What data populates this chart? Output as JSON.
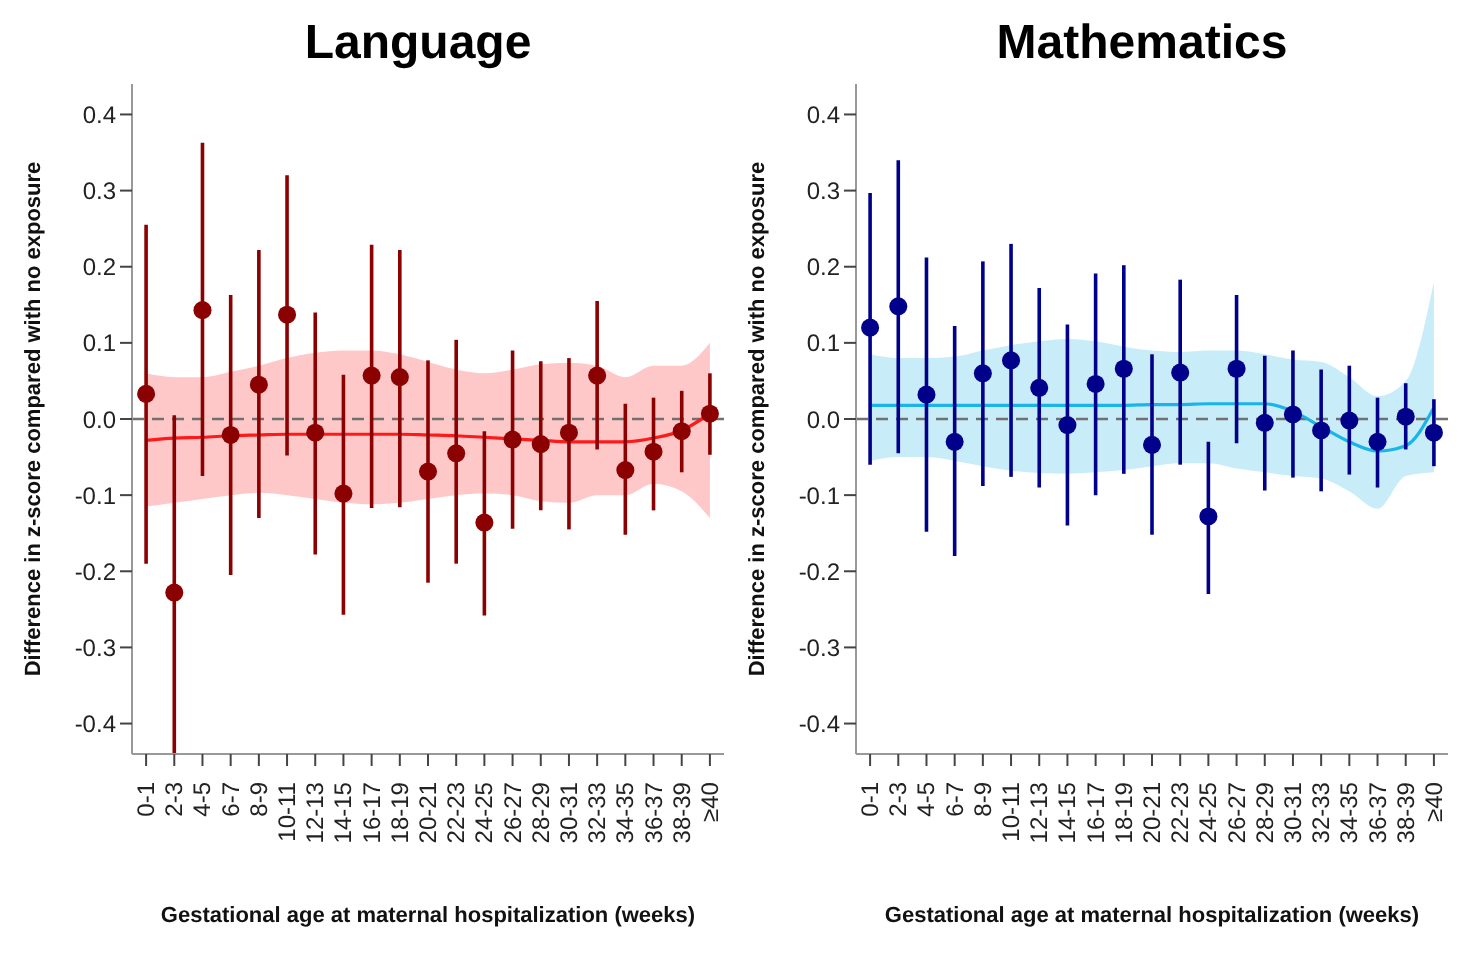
{
  "chart_data": [
    {
      "type": "scatter",
      "title": "Language",
      "xlabel": "Gestational age at maternal hospitalization (weeks)",
      "ylabel": "Difference in z-score compared with no exposure",
      "categories": [
        "0-1",
        "2-3",
        "4-5",
        "6-7",
        "8-9",
        "10-11",
        "12-13",
        "14-15",
        "16-17",
        "18-19",
        "20-21",
        "22-23",
        "24-25",
        "26-27",
        "28-29",
        "30-31",
        "32-33",
        "34-35",
        "36-37",
        "38-39",
        "≥40"
      ],
      "ylim": [
        -0.44,
        0.44
      ],
      "yticks": [
        -0.4,
        -0.3,
        -0.2,
        -0.1,
        {
          "value": 0,
          "label": "0.0"
        },
        0.1,
        0.2,
        0.3,
        0.4
      ],
      "ref_lines": [
        {
          "axis": "y",
          "value": 0,
          "color": "#707070",
          "line_style": "dashed"
        }
      ],
      "series": [
        {
          "type": "line",
          "color": "#ff1a1a",
          "line_style": "solid",
          "marker": "none",
          "values": [
            -0.028,
            -0.025,
            -0.024,
            -0.022,
            -0.021,
            -0.02,
            -0.02,
            -0.02,
            -0.02,
            -0.02,
            -0.021,
            -0.022,
            -0.024,
            -0.026,
            -0.028,
            -0.03,
            -0.03,
            -0.03,
            -0.025,
            -0.015,
            0.007
          ],
          "lower": [
            -0.115,
            -0.11,
            -0.105,
            -0.1,
            -0.097,
            -0.1,
            -0.105,
            -0.11,
            -0.112,
            -0.11,
            -0.105,
            -0.1,
            -0.098,
            -0.1,
            -0.108,
            -0.11,
            -0.1,
            -0.1,
            -0.085,
            -0.095,
            -0.13
          ],
          "upper": [
            0.06,
            0.055,
            0.055,
            0.062,
            0.07,
            0.08,
            0.087,
            0.09,
            0.09,
            0.085,
            0.075,
            0.065,
            0.06,
            0.065,
            0.072,
            0.074,
            0.07,
            0.055,
            0.07,
            0.07,
            0.1
          ]
        },
        {
          "color": "#8b0000",
          "marker": "circle",
          "values": [
            0.033,
            -0.228,
            0.143,
            -0.021,
            0.045,
            0.137,
            -0.018,
            -0.098,
            0.057,
            0.055,
            -0.069,
            -0.045,
            -0.136,
            -0.027,
            -0.033,
            -0.018,
            0.057,
            -0.067,
            -0.043,
            -0.016,
            0.007
          ],
          "errors": [
            [
              -0.19,
              0.255
            ],
            [
              -0.44,
              0.005
            ],
            [
              -0.075,
              0.363
            ],
            [
              -0.205,
              0.163
            ],
            [
              -0.13,
              0.222
            ],
            [
              -0.048,
              0.32
            ],
            [
              -0.178,
              0.14
            ],
            [
              -0.257,
              0.058
            ],
            [
              -0.117,
              0.229
            ],
            [
              -0.116,
              0.222
            ],
            [
              -0.215,
              0.077
            ],
            [
              -0.19,
              0.104
            ],
            [
              -0.258,
              -0.016
            ],
            [
              -0.144,
              0.09
            ],
            [
              -0.12,
              0.076
            ],
            [
              -0.145,
              0.08
            ],
            [
              -0.04,
              0.155
            ],
            [
              -0.152,
              0.02
            ],
            [
              -0.12,
              0.028
            ],
            [
              -0.07,
              0.037
            ],
            [
              -0.047,
              0.06
            ]
          ]
        }
      ]
    },
    {
      "type": "scatter",
      "title": "Mathematics",
      "xlabel": "Gestational age at maternal hospitalization (weeks)",
      "ylabel": "Difference in z-score compared with no exposure",
      "categories": [
        "0-1",
        "2-3",
        "4-5",
        "6-7",
        "8-9",
        "10-11",
        "12-13",
        "14-15",
        "16-17",
        "18-19",
        "20-21",
        "22-23",
        "24-25",
        "26-27",
        "28-29",
        "30-31",
        "32-33",
        "34-35",
        "36-37",
        "38-39",
        "≥40"
      ],
      "ylim": [
        -0.44,
        0.44
      ],
      "yticks": [
        -0.4,
        -0.3,
        -0.2,
        -0.1,
        {
          "value": 0,
          "label": "0.0"
        },
        0.1,
        0.2,
        0.3,
        0.4
      ],
      "ref_lines": [
        {
          "axis": "y",
          "value": 0,
          "color": "#707070",
          "line_style": "dashed"
        }
      ],
      "series": [
        {
          "type": "line",
          "color": "#1ab4e8",
          "line_style": "solid",
          "marker": "none",
          "values": [
            0.018,
            0.018,
            0.018,
            0.018,
            0.018,
            0.018,
            0.018,
            0.018,
            0.018,
            0.018,
            0.019,
            0.019,
            0.02,
            0.02,
            0.02,
            0.01,
            -0.01,
            -0.03,
            -0.042,
            -0.035,
            0.015
          ],
          "lower": [
            -0.055,
            -0.05,
            -0.05,
            -0.055,
            -0.062,
            -0.068,
            -0.071,
            -0.072,
            -0.07,
            -0.067,
            -0.062,
            -0.058,
            -0.058,
            -0.065,
            -0.07,
            -0.075,
            -0.078,
            -0.095,
            -0.118,
            -0.075,
            -0.07
          ],
          "upper": [
            0.085,
            0.08,
            0.08,
            0.082,
            0.09,
            0.097,
            0.102,
            0.105,
            0.102,
            0.095,
            0.09,
            0.088,
            0.09,
            0.09,
            0.085,
            0.078,
            0.075,
            0.055,
            0.03,
            0.05,
            0.18
          ]
        },
        {
          "color": "#00008b",
          "marker": "circle",
          "values": [
            0.12,
            0.148,
            0.032,
            -0.03,
            0.06,
            0.077,
            0.041,
            -0.008,
            0.046,
            0.066,
            -0.034,
            0.061,
            -0.128,
            0.066,
            -0.005,
            0.006,
            -0.015,
            -0.002,
            -0.03,
            0.003,
            -0.018
          ],
          "errors": [
            [
              -0.06,
              0.297
            ],
            [
              -0.045,
              0.34
            ],
            [
              -0.148,
              0.212
            ],
            [
              -0.18,
              0.122
            ],
            [
              -0.088,
              0.207
            ],
            [
              -0.076,
              0.23
            ],
            [
              -0.09,
              0.172
            ],
            [
              -0.14,
              0.124
            ],
            [
              -0.1,
              0.191
            ],
            [
              -0.072,
              0.202
            ],
            [
              -0.152,
              0.085
            ],
            [
              -0.06,
              0.183
            ],
            [
              -0.23,
              -0.03
            ],
            [
              -0.032,
              0.163
            ],
            [
              -0.094,
              0.083
            ],
            [
              -0.077,
              0.09
            ],
            [
              -0.095,
              0.065
            ],
            [
              -0.073,
              0.07
            ],
            [
              -0.09,
              0.028
            ],
            [
              -0.04,
              0.047
            ],
            [
              -0.062,
              0.026
            ]
          ]
        }
      ]
    }
  ]
}
